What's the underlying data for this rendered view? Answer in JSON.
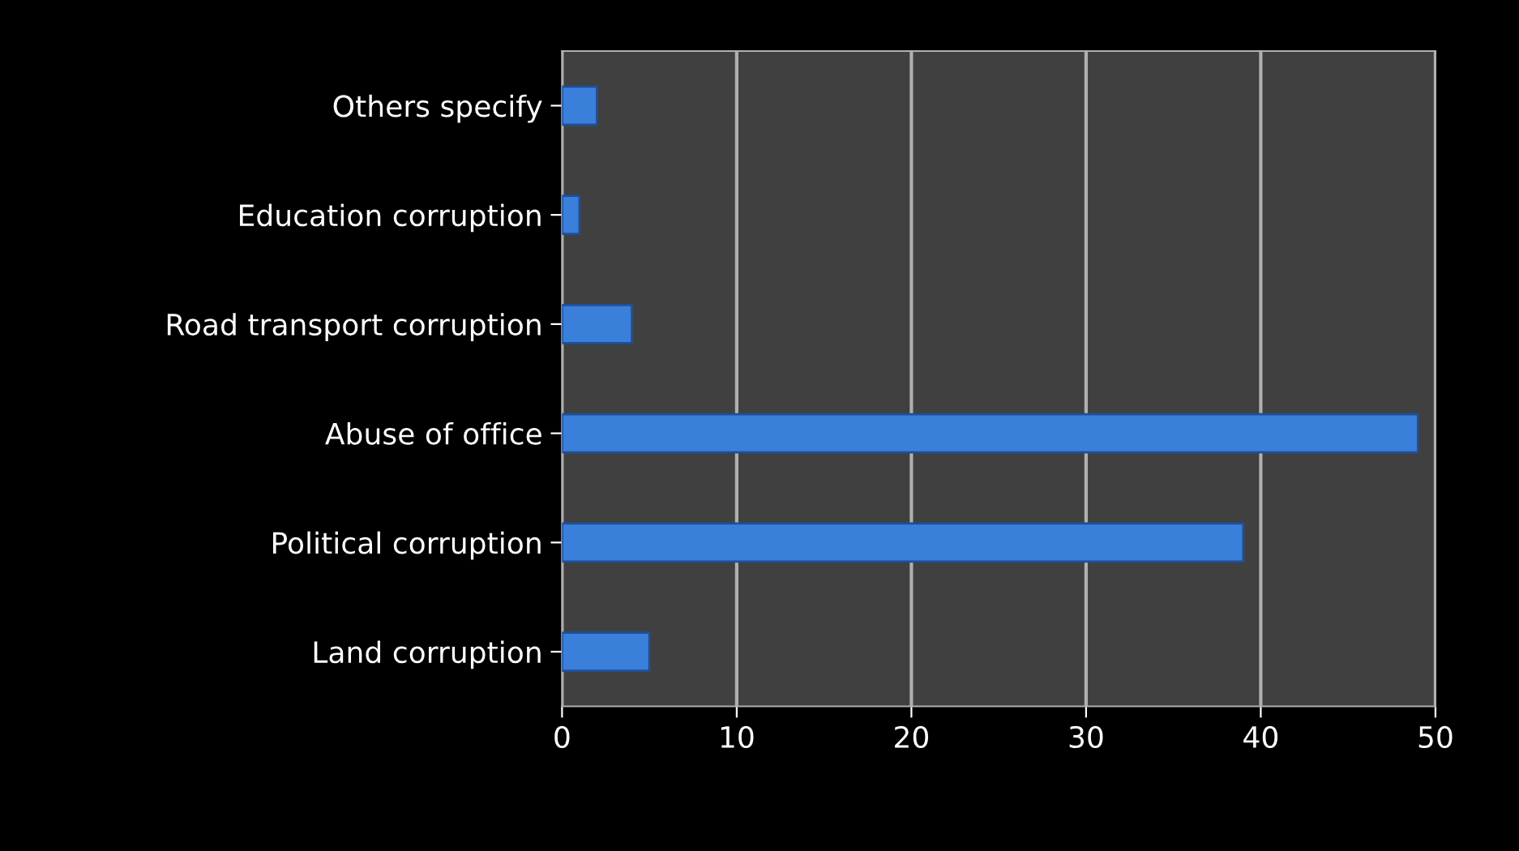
{
  "chart_data": {
    "type": "bar",
    "orientation": "horizontal",
    "categories": [
      "Others specify",
      "Education corruption",
      "Road transport corruption",
      "Abuse of office",
      "Political corruption",
      "Land corruption"
    ],
    "values": [
      2,
      1,
      4,
      49,
      39,
      5
    ],
    "color": "#3a7fd9",
    "xlim": [
      0,
      50
    ],
    "xticks": [
      0,
      10,
      20,
      30,
      40,
      50
    ],
    "grid": "x"
  }
}
